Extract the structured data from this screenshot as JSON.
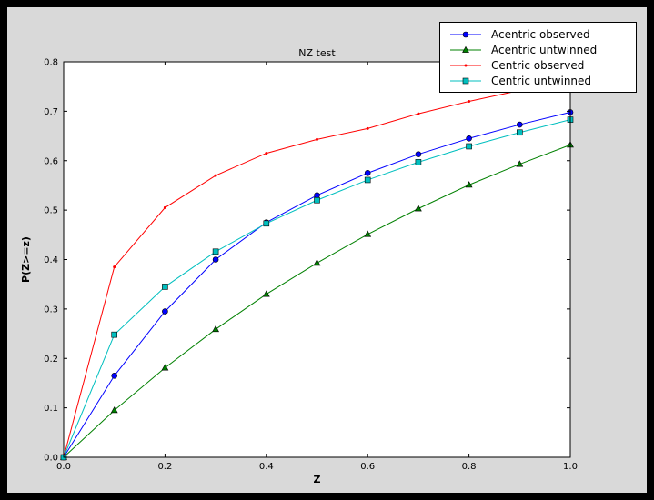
{
  "colors": {
    "outer_bg": "#000000",
    "figure_bg": "#d9d9d9",
    "plot_bg": "#ffffff",
    "axis": "#000000"
  },
  "chart_data": {
    "type": "line",
    "title": "NZ test",
    "xlabel": "Z",
    "ylabel": "P(Z>=z)",
    "xlim": [
      0.0,
      1.0
    ],
    "ylim": [
      0.0,
      0.8
    ],
    "grid": false,
    "legend_position": "upper right",
    "x": [
      0.0,
      0.1,
      0.2,
      0.3,
      0.4,
      0.5,
      0.6,
      0.7,
      0.8,
      0.9,
      1.0
    ],
    "xticks": [
      0.0,
      0.2,
      0.4,
      0.6,
      0.8,
      1.0
    ],
    "xtick_labels": [
      "0.0",
      "0.2",
      "0.4",
      "0.6",
      "0.8",
      "1.0"
    ],
    "yticks": [
      0.0,
      0.1,
      0.2,
      0.3,
      0.4,
      0.5,
      0.6,
      0.7,
      0.8
    ],
    "ytick_labels": [
      "0.0",
      "0.1",
      "0.2",
      "0.3",
      "0.4",
      "0.5",
      "0.6",
      "0.7",
      "0.8"
    ],
    "series": [
      {
        "name": "Acentric observed",
        "color": "#0000ff",
        "marker": "circle",
        "values": [
          0.0,
          0.165,
          0.295,
          0.4,
          0.475,
          0.53,
          0.575,
          0.613,
          0.645,
          0.673,
          0.698
        ]
      },
      {
        "name": "Acentric untwinned",
        "color": "#008000",
        "marker": "triangle",
        "values": [
          0.0,
          0.095,
          0.181,
          0.259,
          0.33,
          0.393,
          0.451,
          0.503,
          0.551,
          0.593,
          0.632
        ]
      },
      {
        "name": "Centric observed",
        "color": "#ff0000",
        "marker": "point",
        "values": [
          0.0,
          0.385,
          0.505,
          0.57,
          0.615,
          0.643,
          0.665,
          0.695,
          0.72,
          0.742,
          0.757
        ]
      },
      {
        "name": "Centric untwinned",
        "color": "#00bfbf",
        "marker": "square",
        "values": [
          0.0,
          0.248,
          0.345,
          0.416,
          0.473,
          0.52,
          0.561,
          0.597,
          0.629,
          0.657,
          0.683
        ]
      }
    ]
  }
}
